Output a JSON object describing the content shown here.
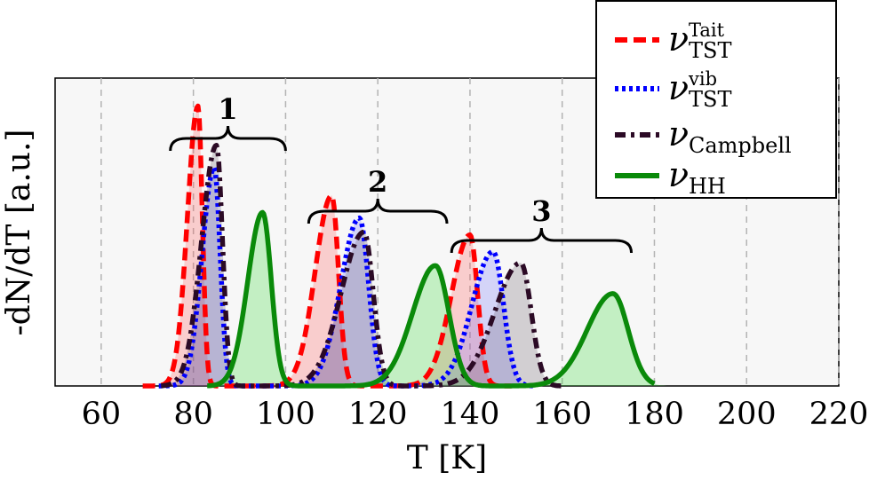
{
  "chart_data": {
    "type": "line",
    "xlabel": "T [K]",
    "ylabel": "-dN/dT [a.u.]",
    "xlim": [
      50,
      220
    ],
    "xticks": [
      60,
      80,
      100,
      120,
      140,
      160,
      180,
      200,
      220
    ],
    "ylim": [
      0,
      1.1
    ],
    "grid": "vertical dashed",
    "legend_position": "top-right",
    "groups": [
      {
        "label": "1",
        "x_range": [
          75,
          100
        ]
      },
      {
        "label": "2",
        "x_range": [
          105,
          135
        ]
      },
      {
        "label": "3",
        "x_range": [
          136,
          175
        ]
      }
    ],
    "series": [
      {
        "id": "tait",
        "name": "ν",
        "sup": "Tait",
        "sub": "TST",
        "color": "#ff0000",
        "style": "dashed",
        "peaks": [
          {
            "x": 81,
            "y": 1.0
          },
          {
            "x": 110,
            "y": 0.68
          },
          {
            "x": 140,
            "y": 0.54
          }
        ]
      },
      {
        "id": "vib",
        "name": "ν",
        "sup": "vib",
        "sub": "TST",
        "color": "#0000ff",
        "style": "dotted",
        "peaks": [
          {
            "x": 84.5,
            "y": 0.78
          },
          {
            "x": 116,
            "y": 0.6
          },
          {
            "x": 145,
            "y": 0.48
          }
        ]
      },
      {
        "id": "campbell",
        "name": "ν",
        "sup": "",
        "sub": "Campbell",
        "color": "#2b0a25",
        "style": "dash-dot",
        "peaks": [
          {
            "x": 85,
            "y": 0.86
          },
          {
            "x": 117,
            "y": 0.55
          },
          {
            "x": 151,
            "y": 0.44
          }
        ]
      },
      {
        "id": "hh",
        "name": "ν",
        "sup": "",
        "sub": "HH",
        "color": "#0a8a0a",
        "style": "solid",
        "peaks": [
          {
            "x": 95,
            "y": 0.62
          },
          {
            "x": 132.5,
            "y": 0.43
          },
          {
            "x": 171,
            "y": 0.33
          }
        ]
      }
    ]
  }
}
